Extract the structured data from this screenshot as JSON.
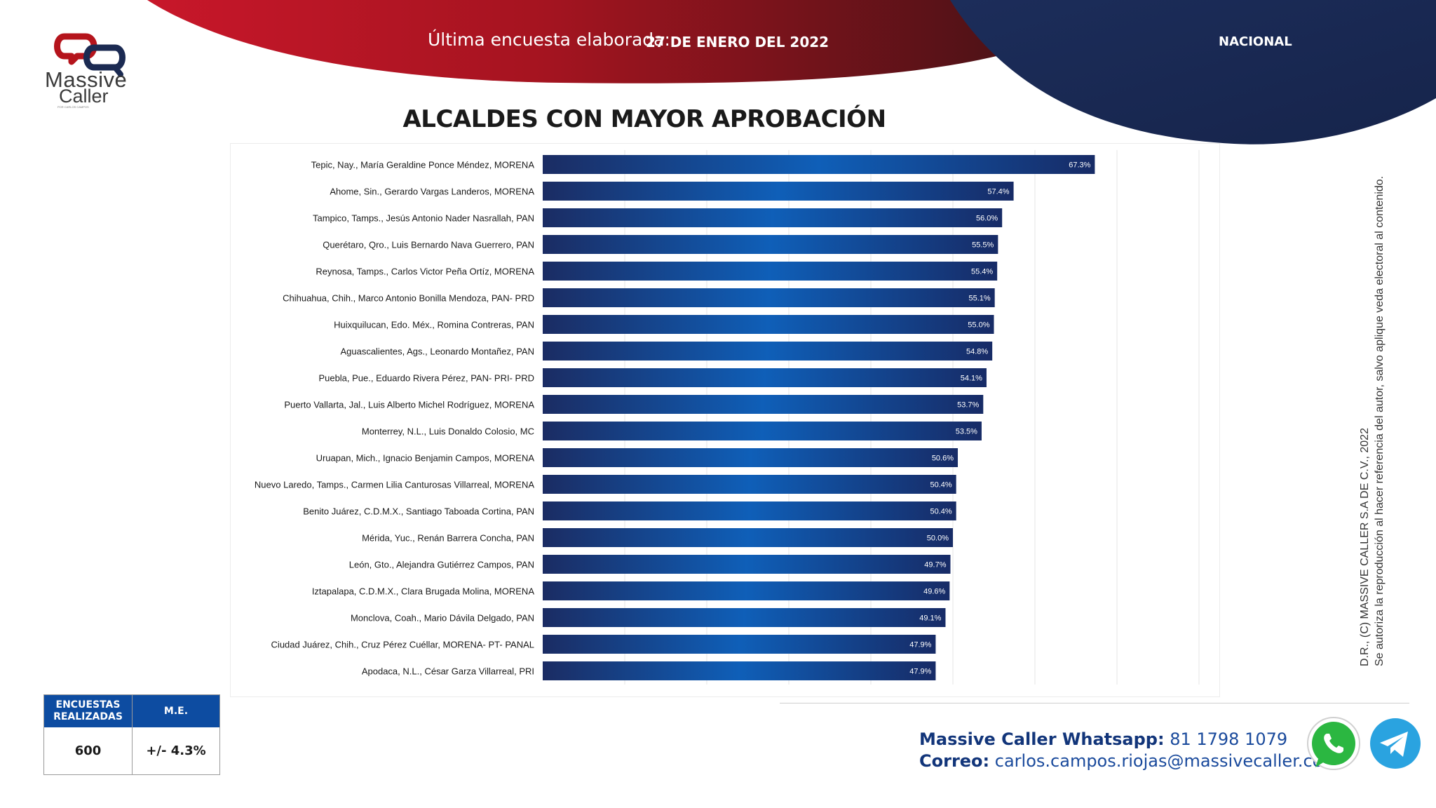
{
  "brand": {
    "logo_line1": "Massive",
    "logo_line2": "Caller",
    "logo_tagline": "POR CARLOS CAMPOS",
    "primary_color": "#0a3d8f",
    "accent_color": "#b5141c",
    "navy_color": "#1b2a52"
  },
  "header": {
    "label": "Última encuesta elaborada:",
    "date": "27 DE ENERO DEL 2022",
    "region": "NACIONAL"
  },
  "chart_data": {
    "type": "bar",
    "orientation": "horizontal",
    "title": "ALCALDES CON MAYOR APROBACIÓN",
    "xlabel": "",
    "ylabel": "",
    "xlim": [
      0,
      80
    ],
    "value_suffix": "%",
    "categories": [
      "Tepic, Nay., María Geraldine Ponce Méndez, MORENA",
      "Ahome, Sin., Gerardo Vargas Landeros, MORENA",
      "Tampico, Tamps., Jesús Antonio Nader Nasrallah, PAN",
      "Querétaro, Qro., Luis Bernardo Nava Guerrero, PAN",
      "Reynosa, Tamps., Carlos Victor Peña Ortíz, MORENA",
      "Chihuahua, Chih., Marco Antonio Bonilla Mendoza, PAN- PRD",
      "Huixquilucan, Edo. Méx., Romina Contreras, PAN",
      "Aguascalientes, Ags., Leonardo Montañez, PAN",
      "Puebla, Pue., Eduardo Rivera Pérez, PAN- PRI- PRD",
      "Puerto Vallarta, Jal., Luis Alberto Michel Rodríguez, MORENA",
      "Monterrey, N.L., Luis Donaldo Colosio, MC",
      "Uruapan, Mich., Ignacio Benjamin Campos, MORENA",
      "Nuevo Laredo, Tamps., Carmen Lilia Canturosas Villarreal, MORENA",
      "Benito Juárez, C.D.M.X., Santiago Taboada Cortina, PAN",
      "Mérida, Yuc., Renán Barrera Concha, PAN",
      "León, Gto., Alejandra Gutiérrez Campos, PAN",
      "Iztapalapa, C.D.M.X., Clara Brugada Molina, MORENA",
      "Monclova, Coah., Mario Dávila Delgado, PAN",
      "Ciudad Juárez, Chih., Cruz Pérez Cuéllar, MORENA- PT- PANAL",
      "Apodaca, N.L., César Garza Villarreal, PRI"
    ],
    "values": [
      67.3,
      57.4,
      56.0,
      55.5,
      55.4,
      55.1,
      55.0,
      54.8,
      54.1,
      53.7,
      53.5,
      50.6,
      50.4,
      50.4,
      50.0,
      49.7,
      49.6,
      49.1,
      47.9,
      47.9
    ],
    "data_labels": [
      "67.3%",
      "57.4%",
      "56.0%",
      "55.5%",
      "55.4%",
      "55.1%",
      "55.0%",
      "54.8%",
      "54.1%",
      "53.7%",
      "53.5%",
      "50.6%",
      "50.4%",
      "50.4%",
      "50.0%",
      "49.7%",
      "49.6%",
      "49.1%",
      "47.9%",
      "47.9%"
    ],
    "grid": true,
    "legend": "none"
  },
  "stats": {
    "surveys_label": "ENCUESTAS REALIZADAS",
    "surveys_value": "600",
    "me_label": "M.E.",
    "me_value": "+/- 4.3%"
  },
  "contact": {
    "whatsapp_label": "Massive Caller Whatsapp:",
    "whatsapp_number": "81 1798 1079",
    "email_label": "Correo:",
    "email": "carlos.campos.riojas@massivecaller.com"
  },
  "copyright": {
    "line1": "D.R., (C) MASSIVE CALLER S.A DE C.V., 2022",
    "line2": "Se autoriza la reproducción al hacer referencia del autor, salvo aplique veda electoral al contenido."
  },
  "icons": {
    "whatsapp": "whatsapp-icon",
    "telegram": "telegram-icon"
  }
}
